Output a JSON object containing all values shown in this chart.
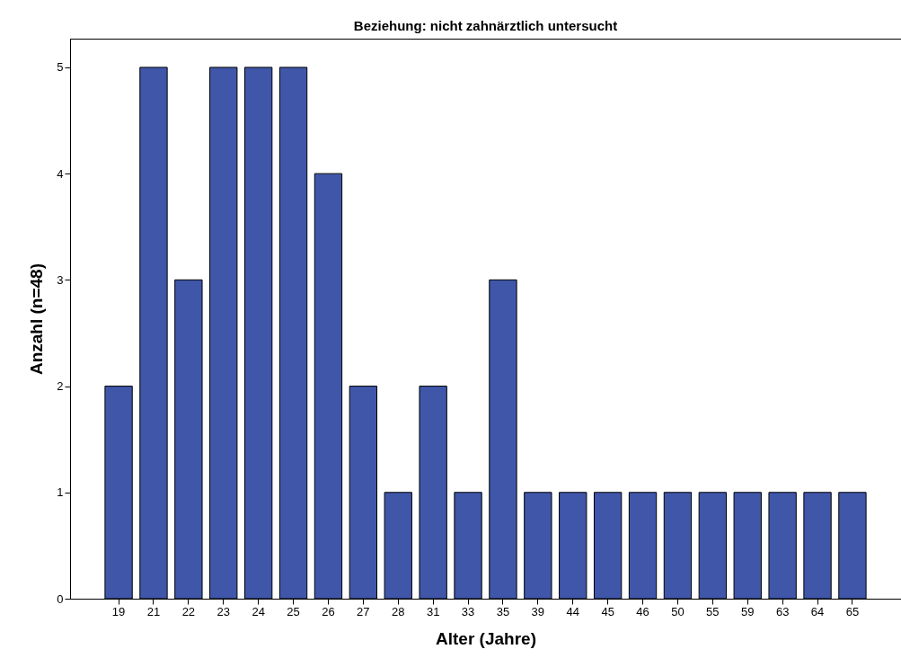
{
  "chart_data": {
    "type": "bar",
    "title": "Beziehung: nicht zahnärztlich untersucht",
    "xlabel": "Alter (Jahre)",
    "ylabel": "Anzahl (n=48)",
    "categories": [
      "19",
      "21",
      "22",
      "23",
      "24",
      "25",
      "26",
      "27",
      "28",
      "31",
      "33",
      "35",
      "39",
      "44",
      "45",
      "46",
      "50",
      "55",
      "59",
      "63",
      "64",
      "65"
    ],
    "values": [
      2,
      5,
      3,
      5,
      5,
      5,
      4,
      2,
      1,
      2,
      1,
      3,
      1,
      1,
      1,
      1,
      1,
      1,
      1,
      1,
      1,
      1
    ],
    "color": "#3f56a9",
    "ylim": [
      0,
      5.27
    ],
    "yticks": [
      0,
      1,
      2,
      3,
      4,
      5
    ],
    "grid": false
  }
}
